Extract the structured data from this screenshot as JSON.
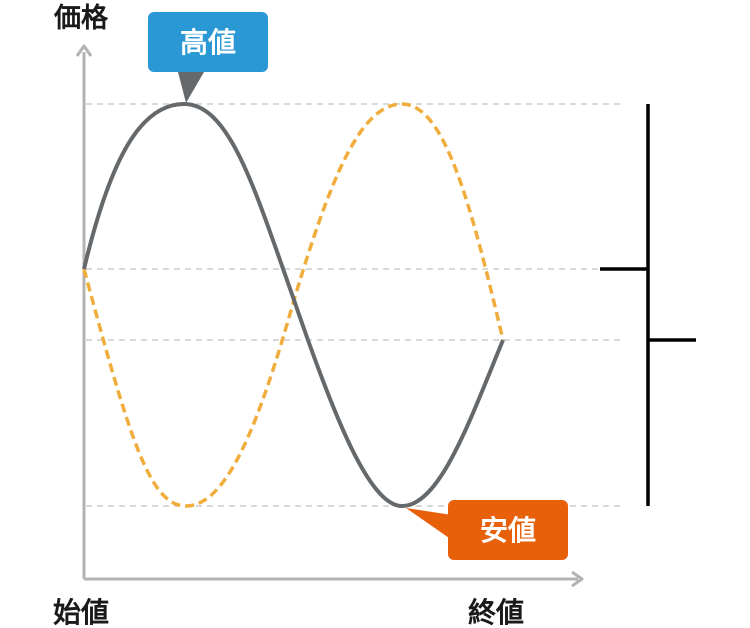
{
  "labels": {
    "y_axis": "価格",
    "open": "始値",
    "close": "終値",
    "high": "高値",
    "low": "安値"
  },
  "colors": {
    "axis": "#b3b3b3",
    "guide": "#d9d9d9",
    "price_line": "#66696b",
    "alt_line": "#f0ad3c",
    "high_callout": "#2a98d4",
    "low_callout": "#e8600a",
    "candle": "#000000",
    "text": "#1a1a1a"
  }
}
